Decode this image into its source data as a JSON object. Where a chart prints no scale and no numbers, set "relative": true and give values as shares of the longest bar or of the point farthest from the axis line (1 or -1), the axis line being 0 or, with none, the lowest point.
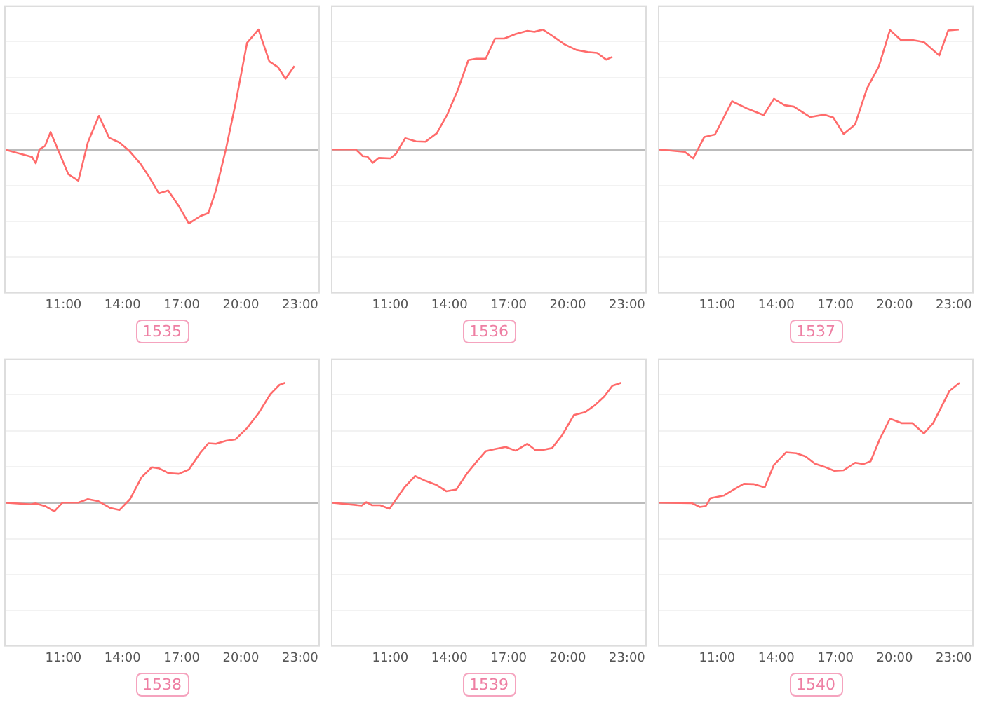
{
  "chart_data": [
    {
      "type": "line",
      "title": "1535",
      "relative": true,
      "xlim": [
        8,
        24
      ],
      "xticks": [
        {
          "value": 11,
          "label": "11:00"
        },
        {
          "value": 14,
          "label": "14:00"
        },
        {
          "value": 17,
          "label": "17:00"
        },
        {
          "value": 20,
          "label": "20:00"
        },
        {
          "value": 23,
          "label": "23:00"
        }
      ],
      "grid": "y",
      "x": [
        8,
        9.41,
        9.6,
        9.79,
        10.07,
        10.35,
        11.25,
        11.76,
        12.24,
        12.8,
        13.32,
        13.84,
        14.35,
        14.89,
        15.36,
        15.84,
        16.31,
        16.85,
        17.36,
        17.95,
        18.35,
        18.73,
        19.25,
        19.72,
        20.31,
        20.89,
        21.44,
        21.88,
        22.26,
        22.71
      ],
      "series": [
        {
          "color": "#ff6b6b",
          "values": [
            0,
            -0.063,
            -0.116,
            0,
            0.029,
            0.145,
            -0.208,
            -0.261,
            0.058,
            0.28,
            0.097,
            0.058,
            -0.014,
            -0.116,
            -0.232,
            -0.367,
            -0.343,
            -0.473,
            -0.618,
            -0.556,
            -0.531,
            -0.343,
            0.01,
            0.377,
            0.889,
            1,
            0.734,
            0.686,
            0.589,
            0.696
          ]
        }
      ]
    },
    {
      "type": "line",
      "title": "1536",
      "relative": true,
      "xlim": [
        8,
        24
      ],
      "xticks": [
        {
          "value": 11,
          "label": "11:00"
        },
        {
          "value": 14,
          "label": "14:00"
        },
        {
          "value": 17,
          "label": "17:00"
        },
        {
          "value": 20,
          "label": "20:00"
        },
        {
          "value": 23,
          "label": "23:00"
        }
      ],
      "grid": "y",
      "x": [
        8,
        9.25,
        9.6,
        9.84,
        10.12,
        10.42,
        11.01,
        11.29,
        11.76,
        12.31,
        12.78,
        13.36,
        13.88,
        14.42,
        14.96,
        15.36,
        15.84,
        16.31,
        16.78,
        17.36,
        17.95,
        18.31,
        18.73,
        19.25,
        19.84,
        20.42,
        21.01,
        21.48,
        21.95,
        22.26
      ],
      "series": [
        {
          "color": "#ff6b6b",
          "values": [
            0,
            0,
            -0.056,
            -0.06,
            -0.112,
            -0.071,
            -0.075,
            -0.037,
            0.094,
            0.067,
            0.064,
            0.135,
            0.288,
            0.494,
            0.745,
            0.757,
            0.757,
            0.925,
            0.925,
            0.963,
            0.989,
            0.981,
            1,
            0.944,
            0.876,
            0.831,
            0.813,
            0.805,
            0.749,
            0.772
          ]
        }
      ]
    },
    {
      "type": "line",
      "title": "1537",
      "relative": true,
      "xlim": [
        8,
        24
      ],
      "xticks": [
        {
          "value": 11,
          "label": "11:00"
        },
        {
          "value": 14,
          "label": "14:00"
        },
        {
          "value": 17,
          "label": "17:00"
        },
        {
          "value": 20,
          "label": "20:00"
        },
        {
          "value": 23,
          "label": "23:00"
        }
      ],
      "grid": "y",
      "x": [
        8,
        9.36,
        9.79,
        10.35,
        10.89,
        11.76,
        12.54,
        13.36,
        13.88,
        14.42,
        14.89,
        15.72,
        16.42,
        16.89,
        17.41,
        17.99,
        18.59,
        19.2,
        19.76,
        20.31,
        20.89,
        21.48,
        22.26,
        22.71,
        23.25
      ],
      "series": [
        {
          "color": "#ff6b6b",
          "values": [
            0,
            -0.021,
            -0.075,
            0.104,
            0.124,
            0.402,
            0.34,
            0.286,
            0.423,
            0.369,
            0.357,
            0.27,
            0.29,
            0.266,
            0.129,
            0.207,
            0.506,
            0.693,
            0.996,
            0.913,
            0.913,
            0.896,
            0.784,
            0.992,
            1
          ]
        }
      ]
    },
    {
      "type": "line",
      "title": "1538",
      "relative": true,
      "xlim": [
        8,
        24
      ],
      "xticks": [
        {
          "value": 11,
          "label": "11:00"
        },
        {
          "value": 14,
          "label": "14:00"
        },
        {
          "value": 17,
          "label": "17:00"
        },
        {
          "value": 20,
          "label": "20:00"
        },
        {
          "value": 23,
          "label": "23:00"
        }
      ],
      "grid": "y",
      "x": [
        8,
        9.36,
        9.6,
        10.07,
        10.54,
        10.96,
        11.76,
        12.24,
        12.78,
        13.36,
        13.84,
        14.38,
        14.96,
        15.48,
        15.84,
        16.31,
        16.85,
        17.36,
        17.95,
        18.35,
        18.73,
        19.25,
        19.72,
        20.31,
        20.89,
        21.48,
        21.95,
        22.24
      ],
      "series": [
        {
          "color": "#ff6b6b",
          "values": [
            0,
            -0.015,
            -0.007,
            -0.029,
            -0.073,
            0,
            0,
            0.029,
            0.011,
            -0.044,
            -0.062,
            0.029,
            0.211,
            0.295,
            0.287,
            0.247,
            0.24,
            0.276,
            0.418,
            0.495,
            0.491,
            0.516,
            0.527,
            0.622,
            0.745,
            0.902,
            0.982,
            1
          ]
        }
      ]
    },
    {
      "type": "line",
      "title": "1539",
      "relative": true,
      "xlim": [
        8,
        24
      ],
      "xticks": [
        {
          "value": 11,
          "label": "11:00"
        },
        {
          "value": 14,
          "label": "14:00"
        },
        {
          "value": 17,
          "label": "17:00"
        },
        {
          "value": 20,
          "label": "20:00"
        },
        {
          "value": 23,
          "label": "23:00"
        }
      ],
      "grid": "y",
      "x": [
        8,
        9.55,
        9.79,
        10.07,
        10.49,
        10.96,
        11.72,
        12.26,
        12.78,
        13.32,
        13.84,
        14.35,
        14.89,
        15.36,
        15.84,
        16.31,
        16.85,
        17.36,
        17.95,
        18.35,
        18.73,
        19.2,
        19.72,
        20.31,
        20.89,
        21.36,
        21.84,
        22.26,
        22.71
      ],
      "series": [
        {
          "color": "#ff6b6b",
          "values": [
            0,
            -0.025,
            0.004,
            -0.022,
            -0.022,
            -0.051,
            0.127,
            0.222,
            0.182,
            0.149,
            0.095,
            0.109,
            0.244,
            0.338,
            0.429,
            0.447,
            0.465,
            0.433,
            0.491,
            0.44,
            0.44,
            0.455,
            0.564,
            0.731,
            0.756,
            0.811,
            0.884,
            0.975,
            1
          ]
        }
      ]
    },
    {
      "type": "line",
      "title": "1540",
      "relative": true,
      "xlim": [
        8,
        24
      ],
      "xticks": [
        {
          "value": 11,
          "label": "11:00"
        },
        {
          "value": 14,
          "label": "14:00"
        },
        {
          "value": 17,
          "label": "17:00"
        },
        {
          "value": 20,
          "label": "20:00"
        },
        {
          "value": 23,
          "label": "23:00"
        }
      ],
      "grid": "y",
      "x": [
        8,
        9.72,
        10.12,
        10.42,
        10.66,
        11.36,
        11.84,
        12.35,
        12.85,
        13.41,
        13.88,
        14.49,
        15.01,
        15.48,
        15.95,
        16.42,
        16.94,
        17.41,
        18,
        18.42,
        18.78,
        19.25,
        19.76,
        20.35,
        20.89,
        21.48,
        21.95,
        22.78,
        23.29
      ],
      "series": [
        {
          "color": "#ff6b6b",
          "values": [
            0,
            -0.004,
            -0.037,
            -0.03,
            0.037,
            0.06,
            0.109,
            0.157,
            0.154,
            0.127,
            0.315,
            0.419,
            0.412,
            0.386,
            0.326,
            0.3,
            0.266,
            0.27,
            0.333,
            0.322,
            0.345,
            0.532,
            0.7,
            0.663,
            0.663,
            0.577,
            0.663,
            0.933,
            1
          ]
        }
      ]
    }
  ]
}
